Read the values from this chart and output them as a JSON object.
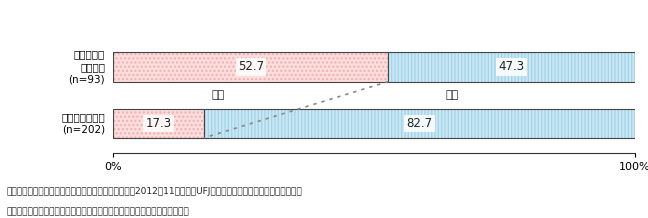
{
  "categories": [
    "株式・有限会社\n(n=202)",
    "特定非営利\n活動法人\n(n=93)"
  ],
  "female_values": [
    17.3,
    52.7
  ],
  "male_values": [
    82.7,
    47.3
  ],
  "female_color": "#F2AEAD",
  "female_face_color": "#FBDDDD",
  "male_color": "#A8D4E8",
  "male_face_color": "#C8E8F5",
  "female_label": "女性",
  "male_label": "男性",
  "footnote1": "資料：中小企業庁委脱「起業の実態に関する調査」（2012年11月、三菱UFJリサーチ＆コンサルティング（株））",
  "footnote2": "（注）　主要業種として、「医療、福祉」と回答した企業を集計している。",
  "bar_height": 0.52,
  "figsize": [
    6.48,
    2.18
  ],
  "dpi": 100,
  "border_color": "#444444",
  "text_color": "#222222",
  "dot_line_color": "#888888"
}
